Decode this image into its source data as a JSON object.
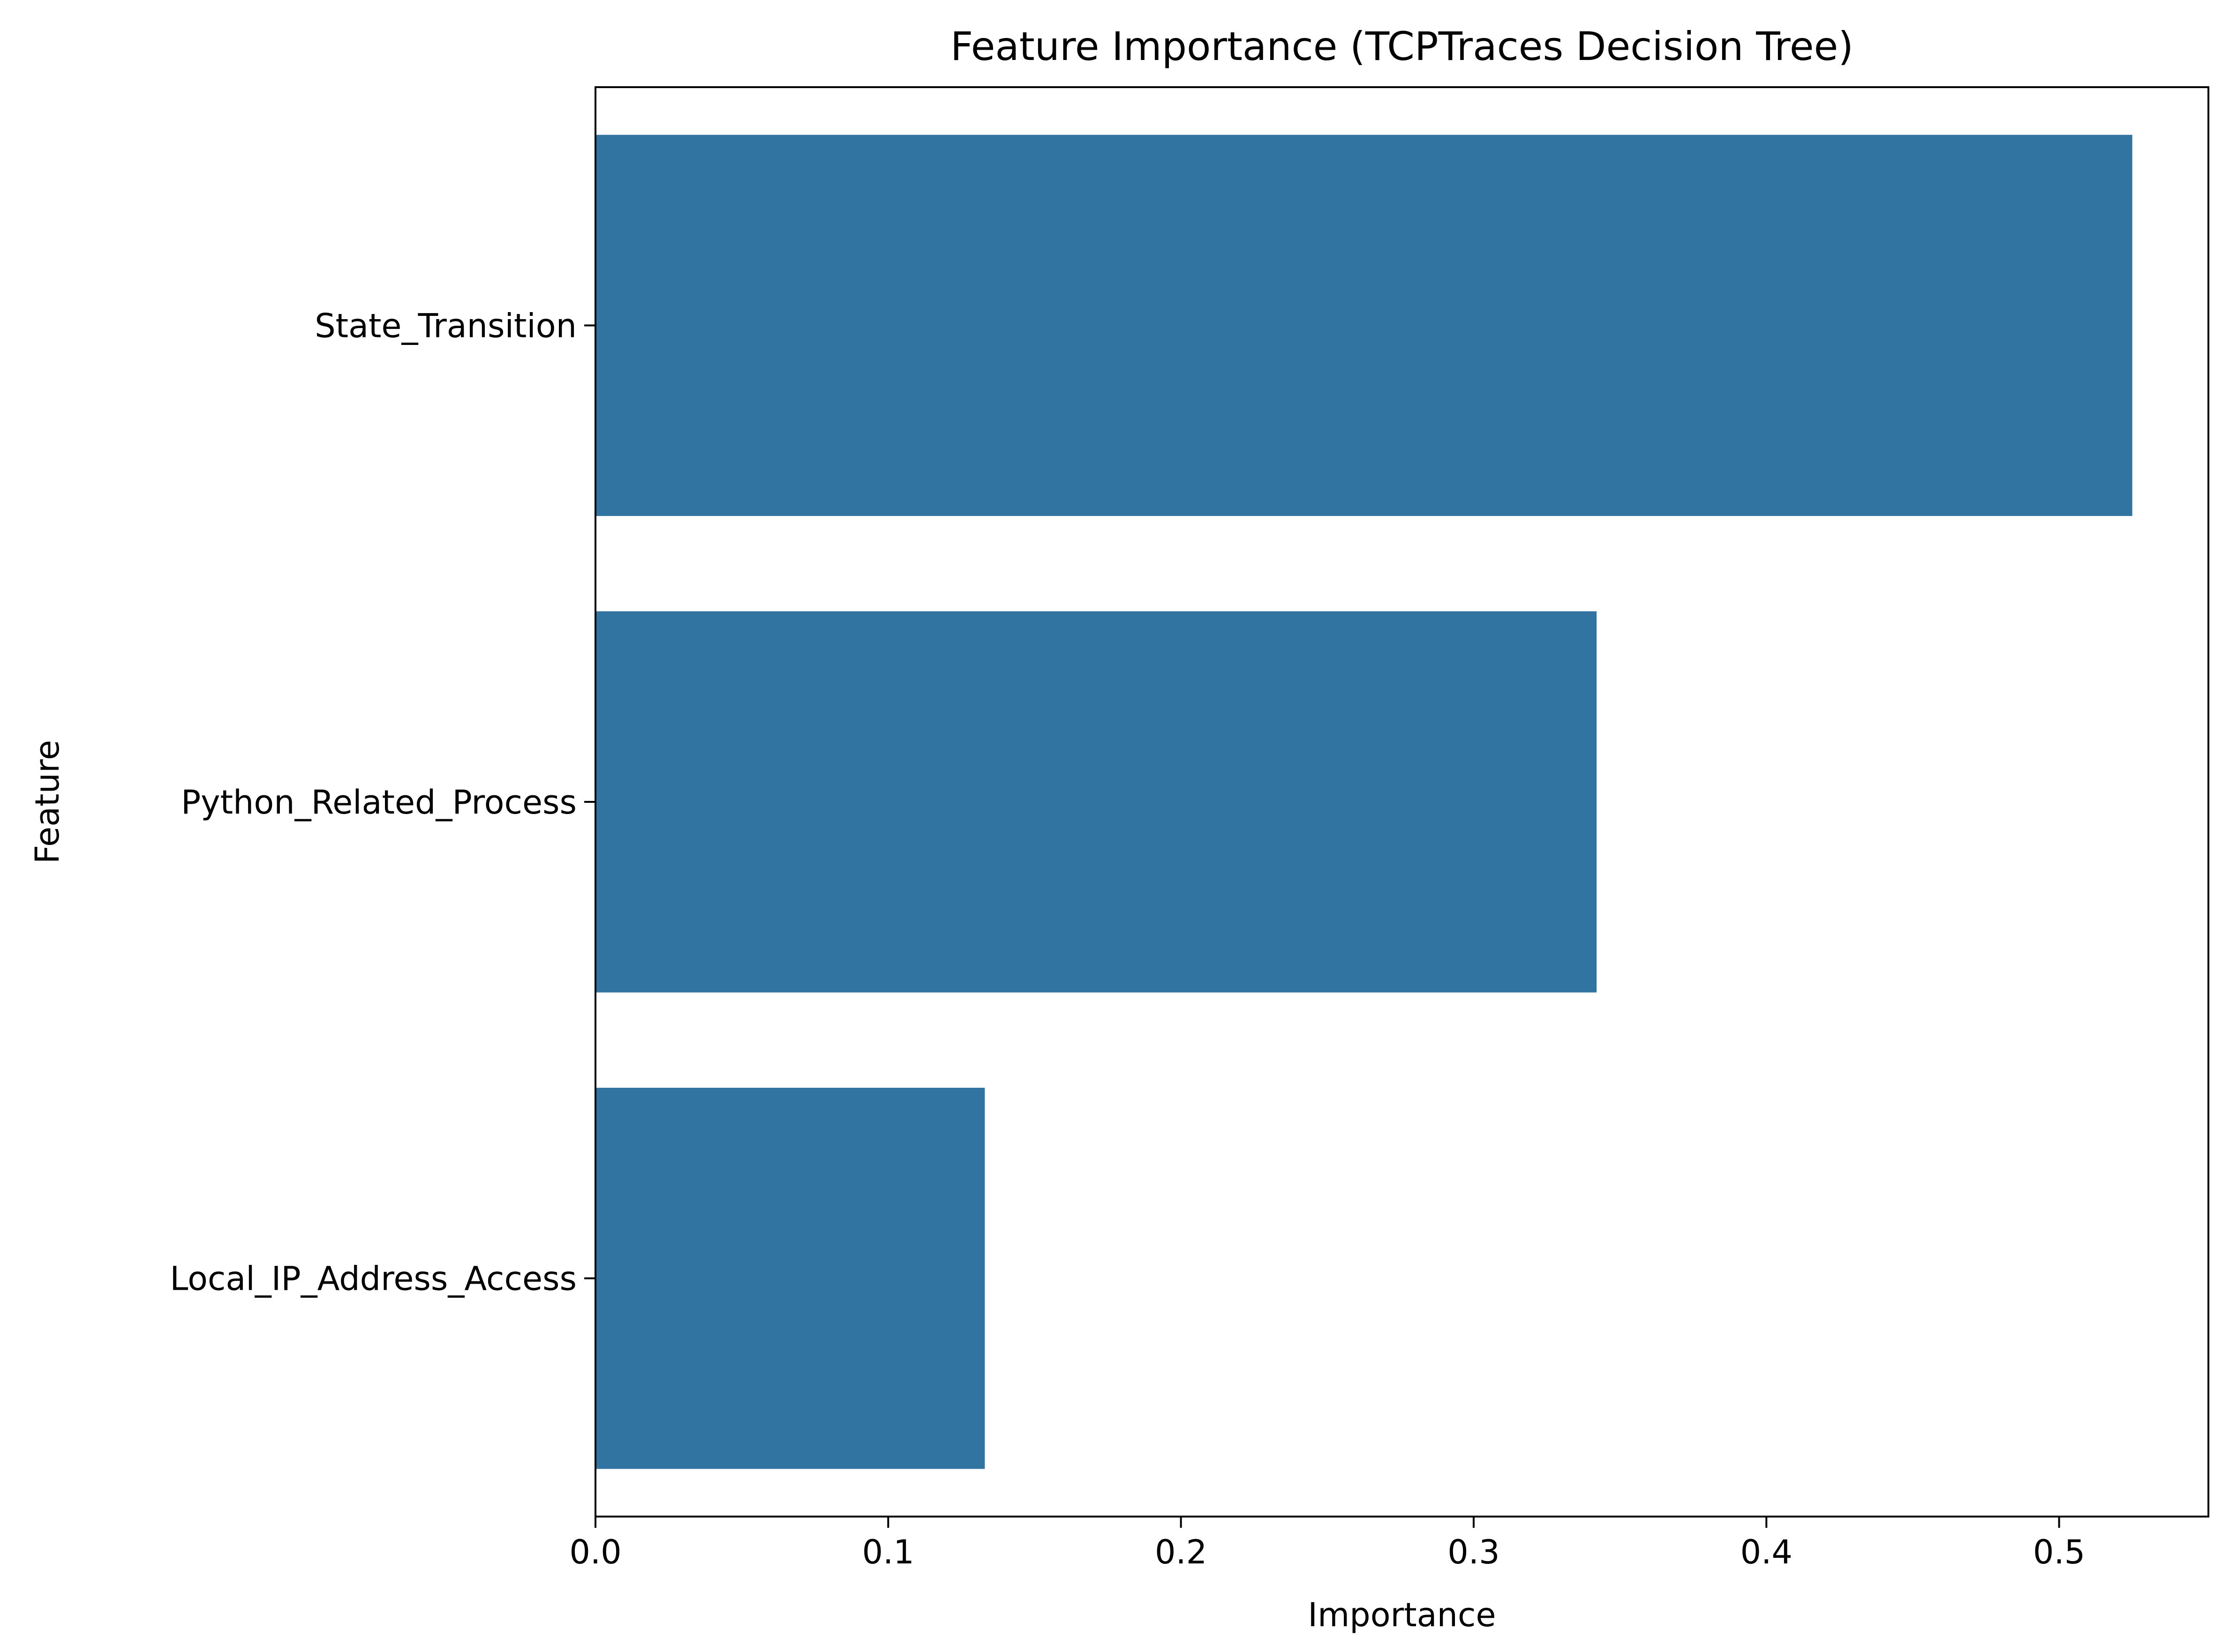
{
  "chart_data": {
    "type": "bar",
    "orientation": "horizontal",
    "title": "Feature Importance (TCPTraces Decision Tree)",
    "xlabel": "Importance",
    "ylabel": "Feature",
    "categories": [
      "State_Transition",
      "Python_Related_Process",
      "Local_IP_Address_Access"
    ],
    "values": [
      0.525,
      0.342,
      0.133
    ],
    "xlim": [
      0,
      0.551
    ],
    "xticks": [
      0.0,
      0.1,
      0.2,
      0.3,
      0.4,
      0.5
    ],
    "xtick_labels": [
      "0.0",
      "0.1",
      "0.2",
      "0.3",
      "0.4",
      "0.5"
    ],
    "grid": false,
    "bar_color": "#3274a1"
  }
}
